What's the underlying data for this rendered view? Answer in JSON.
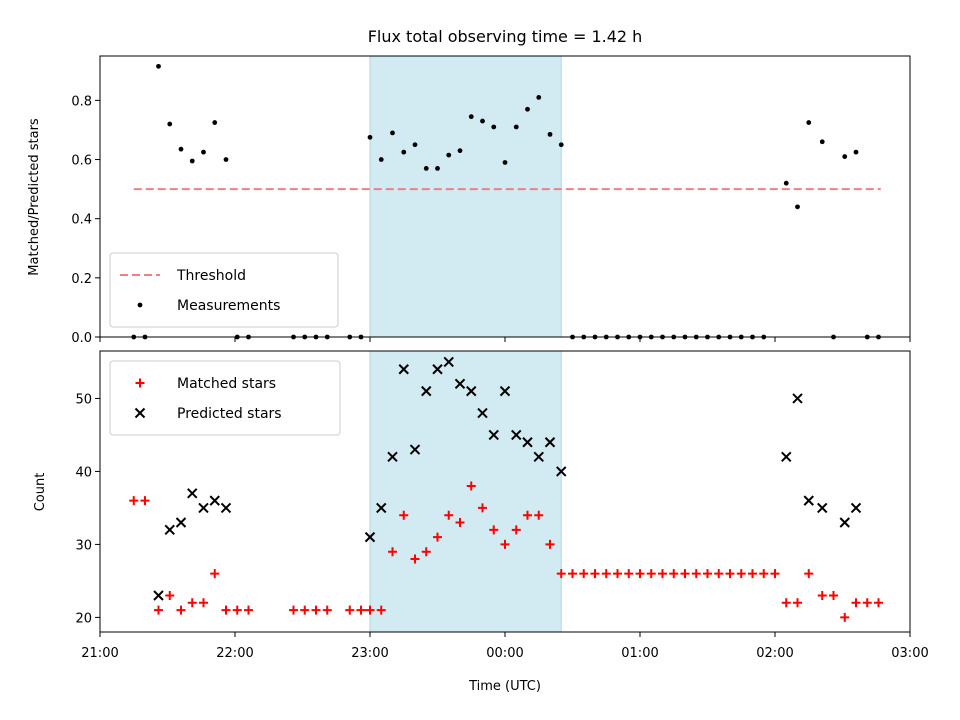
{
  "chart_data": [
    {
      "type": "scatter",
      "title": "Flux total observing time = 1.42 h",
      "ylabel": "Matched/Predicted stars",
      "xlabel": "",
      "ylim": [
        0,
        0.95
      ],
      "yticks": [
        0.0,
        0.2,
        0.4,
        0.6,
        0.8
      ],
      "ytick_labels": [
        "0.0",
        "0.2",
        "0.4",
        "0.6",
        "0.8"
      ],
      "grid": false,
      "legend_position": "lower-left",
      "highlight_span": {
        "start": "23:00",
        "end": "00:25",
        "color": "#add8e6"
      },
      "threshold": {
        "name": "Threshold",
        "value": 0.5,
        "x_start": "21:15",
        "x_end": "02:47",
        "color": "#f08080"
      },
      "series": [
        {
          "name": "Measurements",
          "marker": "dot",
          "color": "#000000",
          "points": [
            [
              "21:15",
              0.0
            ],
            [
              "21:20",
              0.0
            ],
            [
              "21:26",
              0.915
            ],
            [
              "21:31",
              0.72
            ],
            [
              "21:36",
              0.635
            ],
            [
              "21:41",
              0.595
            ],
            [
              "21:46",
              0.625
            ],
            [
              "21:51",
              0.725
            ],
            [
              "21:56",
              0.6
            ],
            [
              "22:01",
              0.0
            ],
            [
              "22:06",
              0.0
            ],
            [
              "22:26",
              0.0
            ],
            [
              "22:31",
              0.0
            ],
            [
              "22:36",
              0.0
            ],
            [
              "22:41",
              0.0
            ],
            [
              "22:51",
              0.0
            ],
            [
              "22:56",
              0.0
            ],
            [
              "23:00",
              0.675
            ],
            [
              "23:05",
              0.6
            ],
            [
              "23:10",
              0.69
            ],
            [
              "23:15",
              0.625
            ],
            [
              "23:20",
              0.65
            ],
            [
              "23:25",
              0.57
            ],
            [
              "23:30",
              0.57
            ],
            [
              "23:35",
              0.615
            ],
            [
              "23:40",
              0.63
            ],
            [
              "23:45",
              0.745
            ],
            [
              "23:50",
              0.73
            ],
            [
              "23:55",
              0.71
            ],
            [
              "00:00",
              0.59
            ],
            [
              "00:05",
              0.71
            ],
            [
              "00:10",
              0.77
            ],
            [
              "00:15",
              0.81
            ],
            [
              "00:20",
              0.685
            ],
            [
              "00:25",
              0.65
            ],
            [
              "00:30",
              0.0
            ],
            [
              "00:35",
              0.0
            ],
            [
              "00:40",
              0.0
            ],
            [
              "00:45",
              0.0
            ],
            [
              "00:50",
              0.0
            ],
            [
              "00:55",
              0.0
            ],
            [
              "01:00",
              0.0
            ],
            [
              "01:05",
              0.0
            ],
            [
              "01:10",
              0.0
            ],
            [
              "01:15",
              0.0
            ],
            [
              "01:20",
              0.0
            ],
            [
              "01:25",
              0.0
            ],
            [
              "01:30",
              0.0
            ],
            [
              "01:35",
              0.0
            ],
            [
              "01:40",
              0.0
            ],
            [
              "01:45",
              0.0
            ],
            [
              "01:50",
              0.0
            ],
            [
              "01:55",
              0.0
            ],
            [
              "02:05",
              0.52
            ],
            [
              "02:10",
              0.44
            ],
            [
              "02:15",
              0.725
            ],
            [
              "02:21",
              0.66
            ],
            [
              "02:26",
              0.0
            ],
            [
              "02:31",
              0.61
            ],
            [
              "02:36",
              0.625
            ],
            [
              "02:41",
              0.0
            ],
            [
              "02:46",
              0.0
            ]
          ]
        }
      ]
    },
    {
      "type": "scatter",
      "title": "",
      "ylabel": "Count",
      "xlabel": "Time (UTC)",
      "ylim": [
        18,
        56.5
      ],
      "yticks": [
        20,
        30,
        40,
        50
      ],
      "ytick_labels": [
        "20",
        "30",
        "40",
        "50"
      ],
      "xticks": [
        "21:00",
        "22:00",
        "23:00",
        "00:00",
        "01:00",
        "02:00",
        "03:00"
      ],
      "xtick_labels": [
        "21:00",
        "22:00",
        "23:00",
        "00:00",
        "01:00",
        "02:00",
        "03:00"
      ],
      "grid": false,
      "legend_position": "upper-left",
      "highlight_span": {
        "start": "23:00",
        "end": "00:25",
        "color": "#add8e6"
      },
      "series": [
        {
          "name": "Matched stars",
          "marker": "plus",
          "color": "#ff0000",
          "points": [
            [
              "21:15",
              36
            ],
            [
              "21:20",
              36
            ],
            [
              "21:26",
              21
            ],
            [
              "21:31",
              23
            ],
            [
              "21:36",
              21
            ],
            [
              "21:41",
              22
            ],
            [
              "21:46",
              22
            ],
            [
              "21:51",
              26
            ],
            [
              "21:56",
              21
            ],
            [
              "22:01",
              21
            ],
            [
              "22:06",
              21
            ],
            [
              "22:26",
              21
            ],
            [
              "22:31",
              21
            ],
            [
              "22:36",
              21
            ],
            [
              "22:41",
              21
            ],
            [
              "22:51",
              21
            ],
            [
              "22:56",
              21
            ],
            [
              "23:00",
              21
            ],
            [
              "23:05",
              21
            ],
            [
              "23:10",
              29
            ],
            [
              "23:15",
              34
            ],
            [
              "23:20",
              28
            ],
            [
              "23:25",
              29
            ],
            [
              "23:30",
              31
            ],
            [
              "23:35",
              34
            ],
            [
              "23:40",
              33
            ],
            [
              "23:45",
              38
            ],
            [
              "23:50",
              35
            ],
            [
              "23:55",
              32
            ],
            [
              "00:00",
              30
            ],
            [
              "00:05",
              32
            ],
            [
              "00:10",
              34
            ],
            [
              "00:15",
              34
            ],
            [
              "00:20",
              30
            ],
            [
              "00:25",
              26
            ],
            [
              "00:30",
              26
            ],
            [
              "00:35",
              26
            ],
            [
              "00:40",
              26
            ],
            [
              "00:45",
              26
            ],
            [
              "00:50",
              26
            ],
            [
              "00:55",
              26
            ],
            [
              "01:00",
              26
            ],
            [
              "01:05",
              26
            ],
            [
              "01:10",
              26
            ],
            [
              "01:15",
              26
            ],
            [
              "01:20",
              26
            ],
            [
              "01:25",
              26
            ],
            [
              "01:30",
              26
            ],
            [
              "01:35",
              26
            ],
            [
              "01:40",
              26
            ],
            [
              "01:45",
              26
            ],
            [
              "01:50",
              26
            ],
            [
              "01:55",
              26
            ],
            [
              "02:00",
              26
            ],
            [
              "02:05",
              22
            ],
            [
              "02:10",
              22
            ],
            [
              "02:15",
              26
            ],
            [
              "02:21",
              23
            ],
            [
              "02:26",
              23
            ],
            [
              "02:31",
              20
            ],
            [
              "02:36",
              22
            ],
            [
              "02:41",
              22
            ],
            [
              "02:46",
              22
            ]
          ]
        },
        {
          "name": "Predicted stars",
          "marker": "x",
          "color": "#000000",
          "points": [
            [
              "21:26",
              23
            ],
            [
              "21:31",
              32
            ],
            [
              "21:36",
              33
            ],
            [
              "21:41",
              37
            ],
            [
              "21:46",
              35
            ],
            [
              "21:51",
              36
            ],
            [
              "21:56",
              35
            ],
            [
              "23:00",
              31
            ],
            [
              "23:05",
              35
            ],
            [
              "23:10",
              42
            ],
            [
              "23:15",
              54
            ],
            [
              "23:20",
              43
            ],
            [
              "23:25",
              51
            ],
            [
              "23:30",
              54
            ],
            [
              "23:35",
              55
            ],
            [
              "23:40",
              52
            ],
            [
              "23:45",
              51
            ],
            [
              "23:50",
              48
            ],
            [
              "23:55",
              45
            ],
            [
              "00:00",
              51
            ],
            [
              "00:05",
              45
            ],
            [
              "00:10",
              44
            ],
            [
              "00:15",
              42
            ],
            [
              "00:20",
              44
            ],
            [
              "00:25",
              40
            ],
            [
              "02:05",
              42
            ],
            [
              "02:10",
              50
            ],
            [
              "02:15",
              36
            ],
            [
              "02:21",
              35
            ],
            [
              "02:31",
              33
            ],
            [
              "02:36",
              35
            ]
          ]
        }
      ]
    }
  ]
}
